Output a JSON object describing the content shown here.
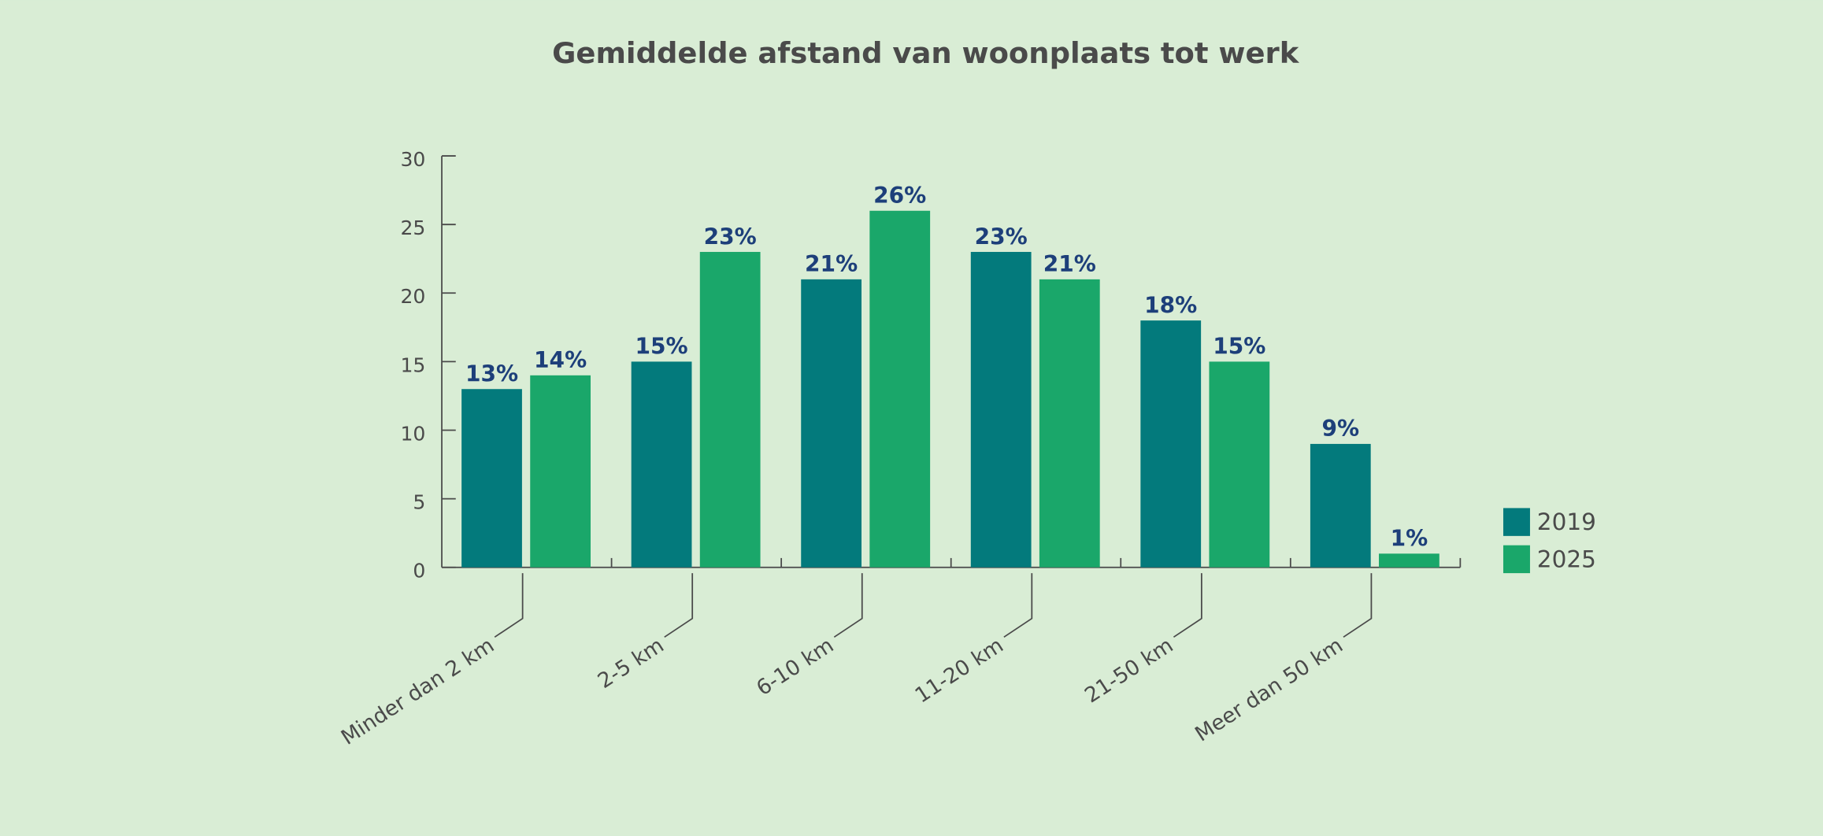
{
  "chart_data": {
    "type": "bar",
    "title": "Gemiddelde afstand van woonplaats tot werk",
    "categories": [
      "Minder dan 2 km",
      "2-5 km",
      "6-10 km",
      "11-20 km",
      "21-50 km",
      "Meer dan 50 km"
    ],
    "series": [
      {
        "name": "2019",
        "color": "#037a7c",
        "values": [
          13,
          15,
          21,
          23,
          18,
          9
        ],
        "value_labels": [
          "13%",
          "15%",
          "21%",
          "23%",
          "18%",
          "9%"
        ]
      },
      {
        "name": "2025",
        "color": "#1aa76a",
        "values": [
          14,
          23,
          26,
          21,
          15,
          1
        ],
        "value_labels": [
          "14%",
          "23%",
          "26%",
          "21%",
          "15%",
          "1%"
        ]
      }
    ],
    "ylim": [
      0,
      30
    ],
    "yticks": [
      0,
      5,
      10,
      15,
      20,
      25,
      30
    ],
    "legend": "right"
  }
}
